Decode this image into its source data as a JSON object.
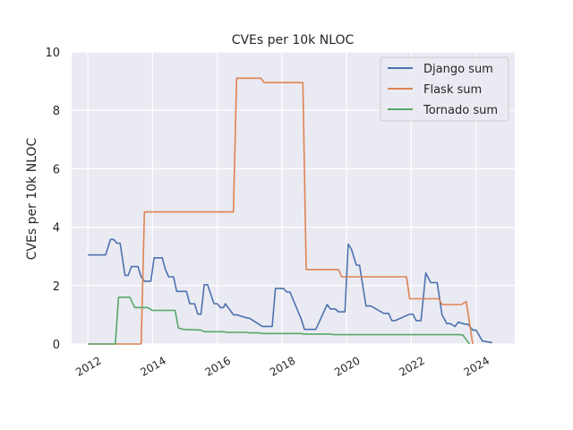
{
  "chart_data": {
    "type": "line",
    "title": "CVEs per 10k NLOC",
    "ylabel": "CVEs per 10k NLOC",
    "xlabel": "",
    "xlim": [
      2011.5,
      2025.2
    ],
    "ylim": [
      0,
      10
    ],
    "x_ticks": [
      2012,
      2014,
      2016,
      2018,
      2020,
      2022,
      2024
    ],
    "x_tick_labels": [
      "2012",
      "2014",
      "2016",
      "2018",
      "2020",
      "2022",
      "2024"
    ],
    "y_ticks": [
      0,
      2,
      4,
      6,
      8,
      10
    ],
    "y_tick_labels": [
      "0",
      "2",
      "4",
      "6",
      "8",
      "10"
    ],
    "grid": true,
    "legend_position": "top-right",
    "series": [
      {
        "name": "Django sum",
        "color": "#4c72b0",
        "x": [
          2012.0,
          2012.5,
          2012.55,
          2012.7,
          2012.8,
          2012.9,
          2013.0,
          2013.15,
          2013.25,
          2013.35,
          2013.55,
          2013.65,
          2013.75,
          2013.95,
          2014.05,
          2014.3,
          2014.4,
          2014.5,
          2014.65,
          2014.75,
          2015.05,
          2015.15,
          2015.3,
          2015.4,
          2015.5,
          2015.6,
          2015.7,
          2015.9,
          2016.0,
          2016.1,
          2016.2,
          2016.25,
          2016.5,
          2016.6,
          2016.9,
          2017.0,
          2017.4,
          2017.5,
          2017.7,
          2017.8,
          2018.05,
          2018.15,
          2018.25,
          2018.6,
          2018.7,
          2018.85,
          2019.05,
          2019.4,
          2019.5,
          2019.65,
          2019.75,
          2019.95,
          2020.05,
          2020.15,
          2020.3,
          2020.4,
          2020.6,
          2020.75,
          2021.15,
          2021.3,
          2021.4,
          2021.5,
          2021.95,
          2022.05,
          2022.15,
          2022.3,
          2022.45,
          2022.6,
          2022.7,
          2022.8,
          2022.95,
          2023.1,
          2023.2,
          2023.35,
          2023.45,
          2023.65,
          2023.75,
          2023.9,
          2024.0,
          2024.2,
          2024.5
        ],
        "values": [
          3.05,
          3.05,
          3.05,
          3.58,
          3.58,
          3.45,
          3.45,
          2.35,
          2.35,
          2.65,
          2.65,
          2.3,
          2.15,
          2.15,
          2.95,
          2.95,
          2.55,
          2.3,
          2.3,
          1.8,
          1.8,
          1.38,
          1.38,
          1.02,
          1.02,
          2.03,
          2.03,
          1.38,
          1.38,
          1.25,
          1.25,
          1.38,
          1.0,
          1.0,
          0.9,
          0.88,
          0.6,
          0.6,
          0.6,
          1.9,
          1.9,
          1.78,
          1.78,
          0.85,
          0.5,
          0.5,
          0.5,
          1.35,
          1.2,
          1.2,
          1.1,
          1.1,
          3.42,
          3.25,
          2.7,
          2.7,
          1.3,
          1.3,
          1.05,
          1.05,
          0.8,
          0.8,
          1.02,
          1.02,
          0.8,
          0.8,
          2.43,
          2.1,
          2.1,
          2.1,
          1.0,
          0.7,
          0.7,
          0.6,
          0.75,
          0.68,
          0.68,
          0.48,
          0.48,
          0.1,
          0.05
        ]
      },
      {
        "name": "Flask sum",
        "color": "#dd8452",
        "x": [
          2012.0,
          2013.1,
          2013.65,
          2013.75,
          2016.5,
          2016.6,
          2017.35,
          2017.45,
          2018.65,
          2018.75,
          2019.75,
          2019.85,
          2021.85,
          2021.95,
          2022.85,
          2022.95,
          2023.55,
          2023.7,
          2023.9
        ],
        "values": [
          0,
          0,
          0,
          4.52,
          4.52,
          9.1,
          9.1,
          8.95,
          8.95,
          2.55,
          2.55,
          2.3,
          2.3,
          1.55,
          1.55,
          1.35,
          1.35,
          1.45,
          0
        ]
      },
      {
        "name": "Tornado sum",
        "color": "#55a868",
        "x": [
          2012.0,
          2012.85,
          2012.95,
          2013.3,
          2013.45,
          2013.85,
          2014.0,
          2014.7,
          2014.8,
          2014.95,
          2015.5,
          2015.6,
          2016.2,
          2016.3,
          2016.9,
          2017.0,
          2017.3,
          2017.4,
          2018.6,
          2018.7,
          2019.5,
          2019.6,
          2023.5,
          2023.6,
          2023.8
        ],
        "values": [
          0,
          0,
          1.6,
          1.6,
          1.25,
          1.25,
          1.15,
          1.15,
          0.55,
          0.5,
          0.48,
          0.42,
          0.42,
          0.4,
          0.4,
          0.38,
          0.38,
          0.36,
          0.36,
          0.34,
          0.34,
          0.32,
          0.32,
          0.3,
          0
        ]
      }
    ]
  }
}
